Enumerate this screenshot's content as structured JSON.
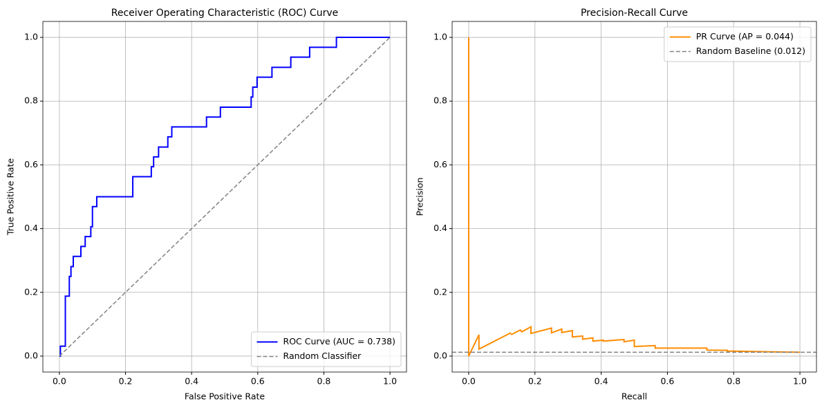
{
  "chart_data": [
    {
      "type": "line",
      "title": "Receiver Operating Characteristic (ROC) Curve",
      "xlabel": "False Positive Rate",
      "ylabel": "True Positive Rate",
      "xlim": [
        -0.05,
        1.05
      ],
      "ylim": [
        -0.05,
        1.05
      ],
      "xticks": [
        {
          "value": 0,
          "label": "0.0"
        },
        {
          "value": 0.2,
          "label": "0.2"
        },
        {
          "value": 0.4,
          "label": "0.4"
        },
        {
          "value": 0.6,
          "label": "0.6"
        },
        {
          "value": 0.8,
          "label": "0.8"
        },
        {
          "value": 1,
          "label": "1.0"
        }
      ],
      "yticks": [
        {
          "value": 0,
          "label": "0.0"
        },
        {
          "value": 0.2,
          "label": "0.2"
        },
        {
          "value": 0.4,
          "label": "0.4"
        },
        {
          "value": 0.6,
          "label": "0.6"
        },
        {
          "value": 0.8,
          "label": "0.8"
        },
        {
          "value": 1,
          "label": "1.0"
        }
      ],
      "grid": true,
      "legend": "lower right",
      "series": [
        {
          "name": "ROC Curve (AUC = 0.738)",
          "color": "#0000ff",
          "linestyle": "solid",
          "width": 2,
          "x": [
            0,
            0.003,
            0.003,
            0.018,
            0.018,
            0.03,
            0.03,
            0.035,
            0.035,
            0.042,
            0.042,
            0.065,
            0.065,
            0.078,
            0.078,
            0.095,
            0.095,
            0.1,
            0.1,
            0.113,
            0.113,
            0.222,
            0.222,
            0.278,
            0.278,
            0.285,
            0.285,
            0.3,
            0.3,
            0.328,
            0.328,
            0.34,
            0.34,
            0.445,
            0.445,
            0.487,
            0.487,
            0.58,
            0.58,
            0.585,
            0.585,
            0.598,
            0.598,
            0.643,
            0.643,
            0.7,
            0.7,
            0.757,
            0.757,
            0.838,
            0.838,
            1.0
          ],
          "values": [
            0,
            0,
            0.031,
            0.031,
            0.188,
            0.188,
            0.25,
            0.25,
            0.281,
            0.281,
            0.313,
            0.313,
            0.344,
            0.344,
            0.375,
            0.375,
            0.406,
            0.406,
            0.469,
            0.469,
            0.5,
            0.5,
            0.563,
            0.563,
            0.594,
            0.594,
            0.625,
            0.625,
            0.656,
            0.656,
            0.688,
            0.688,
            0.719,
            0.719,
            0.75,
            0.75,
            0.781,
            0.781,
            0.813,
            0.813,
            0.844,
            0.844,
            0.875,
            0.875,
            0.906,
            0.906,
            0.938,
            0.938,
            0.969,
            0.969,
            1.0,
            1.0
          ]
        },
        {
          "name": "Random Classifier",
          "color": "#808080",
          "linestyle": "dashed",
          "width": 1.5,
          "x": [
            0,
            1
          ],
          "values": [
            0,
            1
          ]
        }
      ]
    },
    {
      "type": "line",
      "title": "Precision-Recall Curve",
      "xlabel": "Recall",
      "ylabel": "Precision",
      "xlim": [
        -0.05,
        1.05
      ],
      "ylim": [
        -0.05,
        1.05
      ],
      "xticks": [
        {
          "value": 0,
          "label": "0.0"
        },
        {
          "value": 0.2,
          "label": "0.2"
        },
        {
          "value": 0.4,
          "label": "0.4"
        },
        {
          "value": 0.6,
          "label": "0.6"
        },
        {
          "value": 0.8,
          "label": "0.8"
        },
        {
          "value": 1,
          "label": "1.0"
        }
      ],
      "yticks": [
        {
          "value": 0,
          "label": "0.0"
        },
        {
          "value": 0.2,
          "label": "0.2"
        },
        {
          "value": 0.4,
          "label": "0.4"
        },
        {
          "value": 0.6,
          "label": "0.6"
        },
        {
          "value": 0.8,
          "label": "0.8"
        },
        {
          "value": 1,
          "label": "1.0"
        }
      ],
      "grid": true,
      "legend": "upper right",
      "series": [
        {
          "name": "PR Curve (AP = 0.044)",
          "color": "#ff8c00",
          "linestyle": "solid",
          "width": 2,
          "x": [
            0,
            0,
            0.031,
            0.031,
            0.125,
            0.13,
            0.156,
            0.16,
            0.188,
            0.188,
            0.25,
            0.25,
            0.281,
            0.281,
            0.313,
            0.313,
            0.344,
            0.344,
            0.375,
            0.375,
            0.406,
            0.406,
            0.469,
            0.469,
            0.5,
            0.5,
            0.563,
            0.563,
            0.719,
            0.719,
            0.781,
            0.781,
            1.0
          ],
          "values": [
            1.0,
            0.0,
            0.067,
            0.022,
            0.072,
            0.068,
            0.082,
            0.076,
            0.092,
            0.071,
            0.088,
            0.073,
            0.085,
            0.074,
            0.08,
            0.06,
            0.063,
            0.053,
            0.057,
            0.047,
            0.05,
            0.047,
            0.052,
            0.045,
            0.05,
            0.03,
            0.033,
            0.025,
            0.025,
            0.019,
            0.018,
            0.016,
            0.012
          ]
        },
        {
          "name": "Random Baseline (0.012)",
          "color": "#808080",
          "linestyle": "dashed",
          "width": 1.5,
          "hline": 0.012
        }
      ]
    }
  ]
}
